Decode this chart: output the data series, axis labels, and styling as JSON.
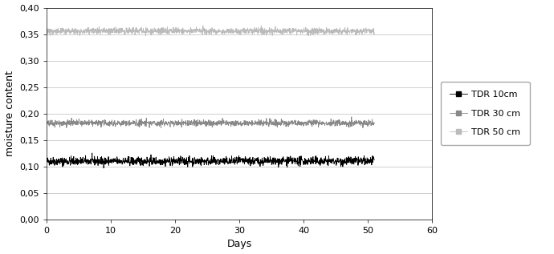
{
  "title": "",
  "xlabel": "Days",
  "ylabel": "moisture content",
  "xlim": [
    0,
    60
  ],
  "ylim": [
    0.0,
    0.4
  ],
  "xticks": [
    0,
    10,
    20,
    30,
    40,
    50,
    60
  ],
  "yticks": [
    0.0,
    0.05,
    0.1,
    0.15,
    0.2,
    0.25,
    0.3,
    0.35,
    0.4
  ],
  "series": [
    {
      "label": "TDR 10cm",
      "color": "#000000",
      "base_value": 0.11,
      "noise_scale": 0.004,
      "linewidth": 0.6
    },
    {
      "label": "TDR 30 cm",
      "color": "#888888",
      "base_value": 0.182,
      "noise_scale": 0.003,
      "linewidth": 0.6
    },
    {
      "label": "TDR 50 cm",
      "color": "#bbbbbb",
      "base_value": 0.356,
      "noise_scale": 0.003,
      "linewidth": 0.6
    }
  ],
  "legend_marker": "s",
  "legend_markersize": 4,
  "n_points": 1500,
  "x_max_data": 51,
  "grid_color": "#c8c8c8",
  "grid_linewidth": 0.6,
  "fig_width": 6.9,
  "fig_height": 3.17,
  "dpi": 100,
  "background_color": "#ffffff",
  "font_size": 8,
  "axis_label_fontsize": 9,
  "legend_fontsize": 8
}
